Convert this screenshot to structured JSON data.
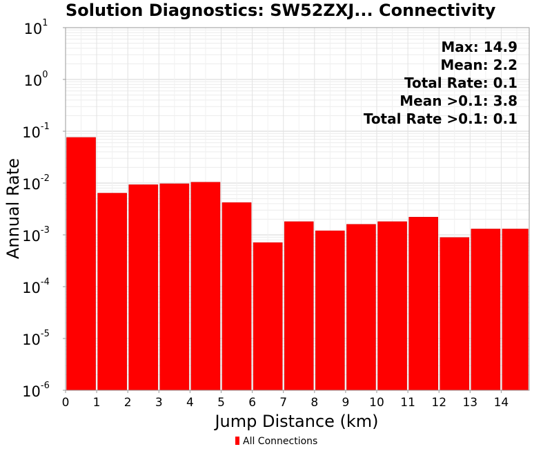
{
  "chart_data": {
    "type": "bar",
    "title": "Solution Diagnostics: SW52ZXJ... Connectivity",
    "xlabel": "Jump Distance (km)",
    "ylabel": "Annual Rate",
    "x_ticks": [
      "0",
      "1",
      "2",
      "3",
      "4",
      "5",
      "6",
      "7",
      "8",
      "9",
      "10",
      "11",
      "12",
      "13",
      "14"
    ],
    "x_range": [
      0,
      14.9
    ],
    "y_scale": "log",
    "y_range": [
      1e-06,
      10
    ],
    "y_ticks": [
      {
        "base": "10",
        "exp": "1"
      },
      {
        "base": "10",
        "exp": "0"
      },
      {
        "base": "10",
        "exp": "-1"
      },
      {
        "base": "10",
        "exp": "-2"
      },
      {
        "base": "10",
        "exp": "-3"
      },
      {
        "base": "10",
        "exp": "-4"
      },
      {
        "base": "10",
        "exp": "-5"
      },
      {
        "base": "10",
        "exp": "-6"
      }
    ],
    "grid": true,
    "legend_position": "bottom-center",
    "series": [
      {
        "name": "All Connections",
        "color": "#ff0000",
        "bin_width": 1,
        "x_start": [
          0,
          1,
          2,
          3,
          4,
          5,
          6,
          7,
          8,
          9,
          10,
          11,
          12,
          13,
          14
        ],
        "values": [
          0.076,
          0.0064,
          0.0093,
          0.0097,
          0.0104,
          0.0042,
          0.00071,
          0.0018,
          0.0012,
          0.0016,
          0.0018,
          0.0022,
          0.00089,
          0.0013,
          0.0013
        ]
      }
    ],
    "annotations": [
      "Max: 14.9",
      "Mean: 2.2",
      "Total Rate: 0.1",
      "Mean >0.1: 3.8",
      "Total Rate >0.1: 0.1"
    ]
  }
}
